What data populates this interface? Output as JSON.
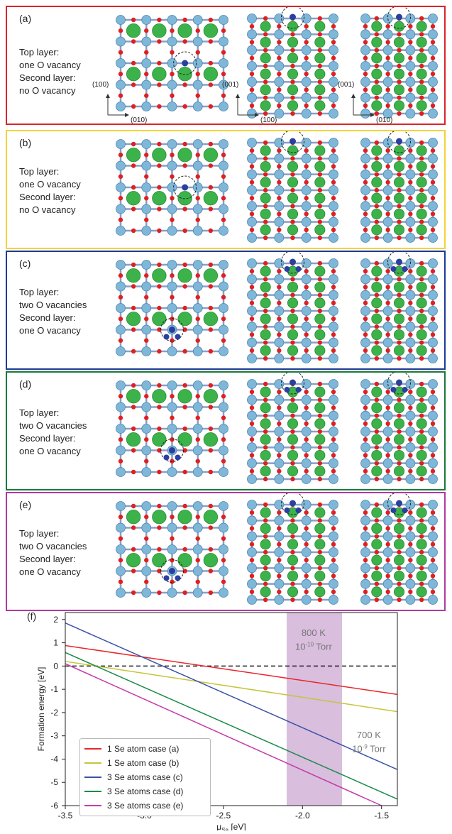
{
  "panels": [
    {
      "tag": "(a)",
      "border": "#d7262b",
      "lines": [
        "Top layer:",
        "one O vacancy",
        "Second layer:",
        "no O vacancy"
      ],
      "axes": {
        "left_v": "(100)",
        "left_h": "(010)",
        "mid_v": "(001)",
        "mid_h": "(100)",
        "right_v": "(001)",
        "right_h": "(010)"
      }
    },
    {
      "tag": "(b)",
      "border": "#f2d33a",
      "lines": [
        "Top layer:",
        "one O vacancy",
        "Second layer:",
        "no O vacancy"
      ]
    },
    {
      "tag": "(c)",
      "border": "#1f3a93",
      "lines": [
        "Top layer:",
        "two O vacancies",
        "Second layer:",
        "one O vacancy"
      ]
    },
    {
      "tag": "(d)",
      "border": "#1a7a3a",
      "lines": [
        "Top layer:",
        "two O vacancies",
        "Second layer:",
        "one O vacancy"
      ]
    },
    {
      "tag": "(e)",
      "border": "#b03aa0",
      "lines": [
        "Top layer:",
        "two O vacancies",
        "Second layer:",
        "one O vacancy"
      ]
    }
  ],
  "chart_data": {
    "type": "line",
    "panel_tag": "(f)",
    "xlabel": "μ",
    "xlabel_sub": "Se",
    "xlabel_unit": " [eV]",
    "ylabel": "Formation energy [eV]",
    "xlim": [
      -3.5,
      -1.4
    ],
    "ylim": [
      -6,
      2.3
    ],
    "xticks": [
      -3.5,
      -3.0,
      -2.5,
      -2.0,
      -1.5
    ],
    "xtick_labels": [
      "-3.5",
      "-3.0",
      "-2.5",
      "-2.0",
      "-1.5"
    ],
    "yticks": [
      2,
      1,
      0,
      -1,
      -2,
      -3,
      -4,
      -5,
      -6
    ],
    "ytick_labels": [
      "2",
      "1",
      "0",
      "-1",
      "-2",
      "-3",
      "-4",
      "-5",
      "-6"
    ],
    "shaded_region": {
      "x": [
        -2.1,
        -1.75
      ],
      "color": "#d9bedd"
    },
    "zero_line": {
      "y": 0,
      "style": "dashed"
    },
    "annotations": [
      {
        "text": "800 K",
        "x": -1.93,
        "y": 1.3
      },
      {
        "text": "10",
        "sup": "-10",
        "tail": " Torr",
        "x": -1.93,
        "y": 0.7
      },
      {
        "text": "700 K",
        "x": -1.58,
        "y": -3.1
      },
      {
        "text": "10",
        "sup": "-9",
        "tail": " Torr",
        "x": -1.58,
        "y": -3.7
      }
    ],
    "series": [
      {
        "name": "1 Se atom case (a)",
        "color": "#e8262b",
        "x": [
          -3.5,
          -1.4
        ],
        "y": [
          0.88,
          -1.22
        ]
      },
      {
        "name": "1 Se atom case (b)",
        "color": "#c6c43a",
        "x": [
          -3.5,
          -1.4
        ],
        "y": [
          0.2,
          -1.96
        ]
      },
      {
        "name": "3 Se atoms case (c)",
        "color": "#3a52a8",
        "x": [
          -3.5,
          -1.4
        ],
        "y": [
          1.85,
          -4.45
        ]
      },
      {
        "name": "3 Se atoms case (d)",
        "color": "#1a8a4a",
        "x": [
          -3.5,
          -1.4
        ],
        "y": [
          0.58,
          -5.72
        ]
      },
      {
        "name": "3 Se atoms case (e)",
        "color": "#c43aa8",
        "x": [
          -3.5,
          -1.5
        ],
        "y": [
          0.1,
          -6.0
        ]
      }
    ],
    "legend": "lower-left"
  }
}
